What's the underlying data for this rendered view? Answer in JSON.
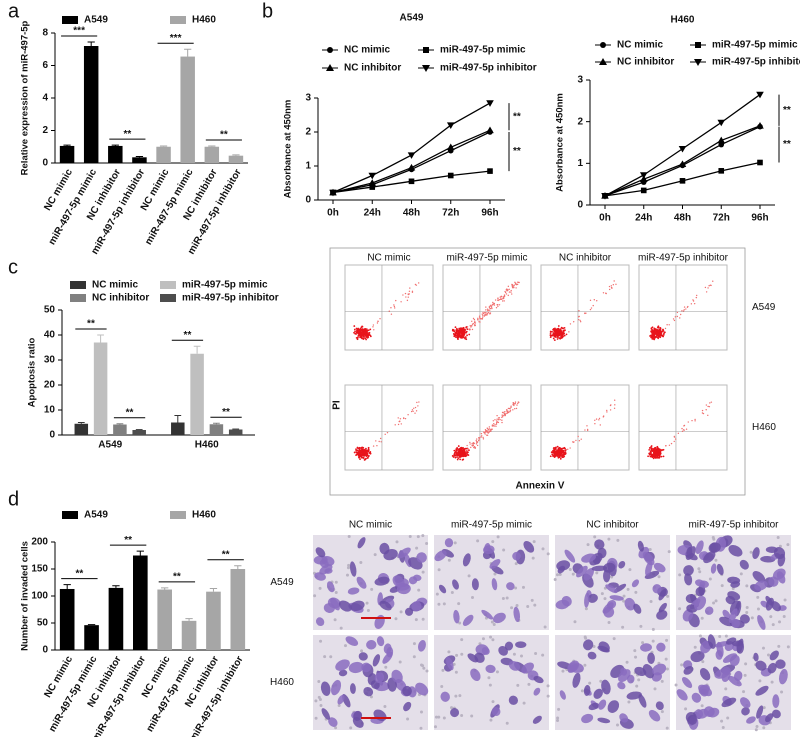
{
  "panel_labels": [
    "a",
    "b",
    "c",
    "d"
  ],
  "chart_data": [
    {
      "type": "bar",
      "group_by": "series",
      "y_label": "Relative expression of miR-497-5p",
      "categories": [
        "NC mimic",
        "miR-497-5p mimic",
        "NC inhibitor",
        "miR-497-5p inhibitor"
      ],
      "series": [
        {
          "name": "A549",
          "color": "#000000",
          "values": [
            1.05,
            7.2,
            1.05,
            0.35
          ],
          "errors": [
            0.05,
            0.25,
            0.05,
            0.05
          ]
        },
        {
          "name": "H460",
          "color": "#a6a6a6",
          "values": [
            1.0,
            6.55,
            1.0,
            0.45
          ],
          "errors": [
            0.05,
            0.45,
            0.05,
            0.05
          ]
        }
      ],
      "ylim": [
        0,
        8
      ],
      "yticks": [
        0,
        2,
        4,
        6,
        8
      ],
      "annotations": [
        "***",
        "**",
        "***",
        "**"
      ]
    },
    {
      "type": "line",
      "title": "A549",
      "y_label": "Absorbance at 450nm",
      "categories": [
        "0h",
        "24h",
        "48h",
        "72h",
        "96h"
      ],
      "series": [
        {
          "name": "NC mimic",
          "marker": "circle",
          "values": [
            0.22,
            0.45,
            0.9,
            1.45,
            2.0
          ]
        },
        {
          "name": "miR-497-5p mimic",
          "marker": "square",
          "values": [
            0.22,
            0.38,
            0.55,
            0.72,
            0.85
          ]
        },
        {
          "name": "NC inhibitor",
          "marker": "triangle-up",
          "values": [
            0.22,
            0.5,
            0.95,
            1.55,
            2.05
          ]
        },
        {
          "name": "miR-497-5p inhibitor",
          "marker": "triangle-down",
          "values": [
            0.22,
            0.72,
            1.32,
            2.2,
            2.85
          ]
        }
      ],
      "ylim": [
        0,
        3
      ],
      "yticks": [
        0,
        1,
        2,
        3
      ],
      "annotations": [
        "**",
        "**"
      ]
    },
    {
      "type": "line",
      "title": "H460",
      "y_label": "Absorbance at 450nm",
      "categories": [
        "0h",
        "24h",
        "48h",
        "72h",
        "96h"
      ],
      "series": [
        {
          "name": "NC mimic",
          "marker": "circle",
          "values": [
            0.22,
            0.55,
            0.95,
            1.45,
            1.88
          ]
        },
        {
          "name": "miR-497-5p mimic",
          "marker": "square",
          "values": [
            0.22,
            0.35,
            0.58,
            0.82,
            1.02
          ]
        },
        {
          "name": "NC inhibitor",
          "marker": "triangle-up",
          "values": [
            0.22,
            0.62,
            0.98,
            1.55,
            1.9
          ]
        },
        {
          "name": "miR-497-5p inhibitor",
          "marker": "triangle-down",
          "values": [
            0.22,
            0.72,
            1.35,
            1.98,
            2.65
          ]
        }
      ],
      "ylim": [
        0,
        3
      ],
      "yticks": [
        0,
        1,
        2,
        3
      ],
      "annotations": [
        "**",
        "**"
      ]
    },
    {
      "type": "bar",
      "group_by": "category",
      "y_label": "Apoptosis ratio",
      "categories": [
        "A549",
        "H460"
      ],
      "series": [
        {
          "name": "NC mimic",
          "color": "#333333",
          "values": [
            4.5,
            5
          ],
          "errors": [
            0.5,
            2.8
          ]
        },
        {
          "name": "miR-497-5p mimic",
          "color": "#bfbfbf",
          "values": [
            37,
            32.5
          ],
          "errors": [
            3,
            3
          ]
        },
        {
          "name": "NC inhibitor",
          "color": "#808080",
          "values": [
            4.2,
            4.3
          ],
          "errors": [
            0.3,
            0.4
          ]
        },
        {
          "name": "miR-497-5p inhibitor",
          "color": "#4d4d4d",
          "values": [
            2,
            2.2
          ],
          "errors": [
            0.2,
            0.2
          ]
        }
      ],
      "ylim": [
        0,
        50
      ],
      "yticks": [
        0,
        10,
        20,
        30,
        40,
        50
      ],
      "annotations": [
        "**",
        "**",
        "**",
        "**"
      ]
    },
    {
      "type": "bar",
      "group_by": "series",
      "y_label": "Number of invaded cells",
      "categories": [
        "NC mimic",
        "miR-497-5p mimic",
        "NC inhibitor",
        "miR-497-5p inhibitor"
      ],
      "series": [
        {
          "name": "A549",
          "color": "#000000",
          "values": [
            113,
            46,
            115,
            175
          ],
          "errors": [
            8,
            1,
            4,
            8
          ]
        },
        {
          "name": "H460",
          "color": "#a6a6a6",
          "values": [
            112,
            54,
            108,
            150
          ],
          "errors": [
            3,
            4,
            6,
            6
          ]
        }
      ],
      "ylim": [
        0,
        200
      ],
      "yticks": [
        0,
        50,
        100,
        150,
        200
      ],
      "annotations": [
        "**",
        "**",
        "**",
        "**"
      ]
    }
  ],
  "flow_cytometry": {
    "columns": [
      "NC mimic",
      "miR-497-5p mimic",
      "NC inhibitor",
      "miR-497-5p inhibitor"
    ],
    "rows": [
      "A549",
      "H460"
    ],
    "y_label": "PI",
    "x_label": "Annexin V"
  },
  "transwell": {
    "columns": [
      "NC mimic",
      "miR-497-5p mimic",
      "NC inhibitor",
      "miR-497-5p inhibitor"
    ],
    "rows": [
      "A549",
      "H460"
    ]
  }
}
